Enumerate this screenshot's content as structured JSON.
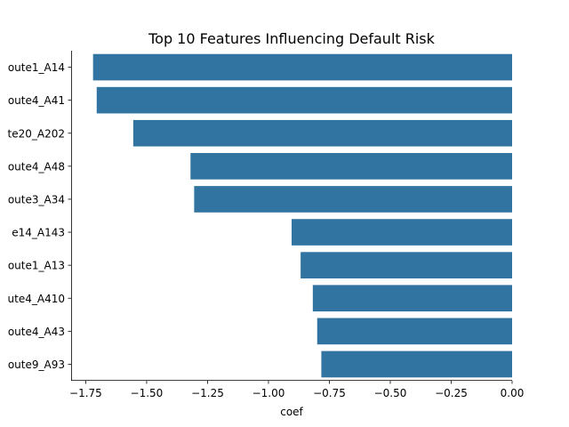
{
  "chart_data": {
    "type": "bar",
    "orientation": "horizontal",
    "title": "Top 10 Features Influencing Default Risk",
    "xlabel": "coef",
    "ylabel": "",
    "categories": [
      "oute1_A14",
      "oute4_A41",
      "te20_A202",
      "oute4_A48",
      "oute3_A34",
      "e14_A143",
      "oute1_A13",
      "ute4_A410",
      "oute4_A43",
      "oute9_A93"
    ],
    "values": [
      -1.72,
      -1.705,
      -1.555,
      -1.32,
      -1.305,
      -0.905,
      -0.868,
      -0.818,
      -0.8,
      -0.783
    ],
    "xlim": [
      -1.81,
      0.0
    ],
    "xticks": [
      -1.75,
      -1.5,
      -1.25,
      -1.0,
      -0.75,
      -0.5,
      -0.25,
      0.0
    ],
    "xtick_labels": [
      "−1.75",
      "−1.50",
      "−1.25",
      "−1.00",
      "−0.75",
      "−0.50",
      "−0.25",
      "0.00"
    ],
    "bar_color": "#3274a1",
    "grid": false,
    "legend": null
  }
}
